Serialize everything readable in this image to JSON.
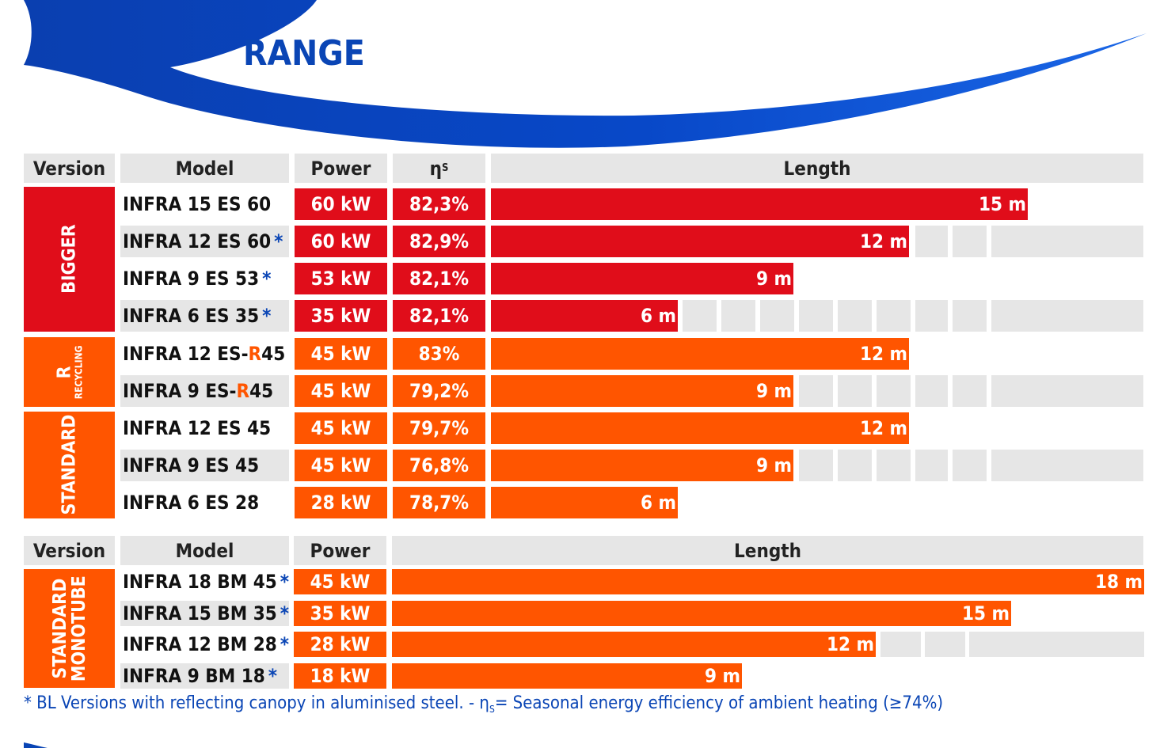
{
  "header": {
    "title": "RANGE"
  },
  "columns1": {
    "version": "Version",
    "model": "Model",
    "power": "Power",
    "eta": "η",
    "eta_sub": "S",
    "length": "Length"
  },
  "columns2": {
    "version": "Version",
    "model": "Model",
    "power": "Power",
    "length": "Length"
  },
  "groups": [
    {
      "label": "BIGGER",
      "color": "#e00d1a"
    },
    {
      "label": "R",
      "sublabel": "RECYCLING",
      "color": "#ff5500"
    },
    {
      "label": "STANDARD",
      "color": "#ff5500"
    },
    {
      "label": "STANDARD",
      "label2": "MONOTUBE",
      "color": "#ff5500"
    }
  ],
  "table1": {
    "length_max_m": 15,
    "rows": [
      {
        "group": "BIGGER",
        "model": "INFRA 15 ES 60",
        "star": "",
        "power": "60 kW",
        "eta": "82,3%",
        "length_m": 15,
        "length": "15 m"
      },
      {
        "group": "BIGGER",
        "model": "INFRA 12 ES 60 ",
        "star": "*",
        "power": "60 kW",
        "eta": "82,9%",
        "length_m": 12,
        "length": "12 m"
      },
      {
        "group": "BIGGER",
        "model": "INFRA 9 ES 53 ",
        "star": "*",
        "power": "53 kW",
        "eta": "82,1%",
        "length_m": 9,
        "length": "9 m"
      },
      {
        "group": "BIGGER",
        "model": "INFRA 6 ES 35 ",
        "star": "*",
        "power": "35 kW",
        "eta": "82,1%",
        "length_m": 6,
        "length": "6 m"
      },
      {
        "group": "R",
        "model_pre": "INFRA 12 ES-",
        "model_r": "R",
        "model_post": " 45",
        "power": "45 kW",
        "eta": "83%",
        "length_m": 12,
        "length": "12 m"
      },
      {
        "group": "R",
        "model_pre": "INFRA 9 ES-",
        "model_r": "R",
        "model_post": " 45",
        "power": "45 kW",
        "eta": "79,2%",
        "length_m": 9,
        "length": "9 m"
      },
      {
        "group": "STANDARD",
        "model": "INFRA 12 ES 45",
        "star": "",
        "power": "45 kW",
        "eta": "79,7%",
        "length_m": 12,
        "length": "12 m"
      },
      {
        "group": "STANDARD",
        "model": "INFRA 9 ES 45",
        "star": "",
        "power": "45 kW",
        "eta": "76,8%",
        "length_m": 9,
        "length": "9 m"
      },
      {
        "group": "STANDARD",
        "model": "INFRA 6 ES 28",
        "star": "",
        "power": "28 kW",
        "eta": "78,7%",
        "length_m": 6,
        "length": "6 m"
      }
    ]
  },
  "table2": {
    "length_max_m": 18,
    "rows": [
      {
        "model": "INFRA 18 BM 45 ",
        "star": "*",
        "power": "45 kW",
        "length_m": 18,
        "length": "18 m"
      },
      {
        "model": "INFRA 15 BM 35 ",
        "star": "*",
        "power": "35 kW",
        "length_m": 15,
        "length": "15 m"
      },
      {
        "model": "INFRA 12 BM 28 ",
        "star": "*",
        "power": "28 kW",
        "length_m": 12,
        "length": "12 m"
      },
      {
        "model": "INFRA 9 BM 18 ",
        "star": "*",
        "power": "18 kW",
        "length_m": 9,
        "length": "9 m"
      }
    ]
  },
  "footer": {
    "part1": "* BL Versions with reflecting canopy in aluminised steel. - η",
    "sub": "S",
    "part2": "= Seasonal energy efficiency of ambient heating (≥74%)"
  },
  "colors": {
    "brand_blue": "#0a45b5",
    "red": "#e00d1a",
    "orange": "#ff5500",
    "grey": "#e6e6e6"
  }
}
